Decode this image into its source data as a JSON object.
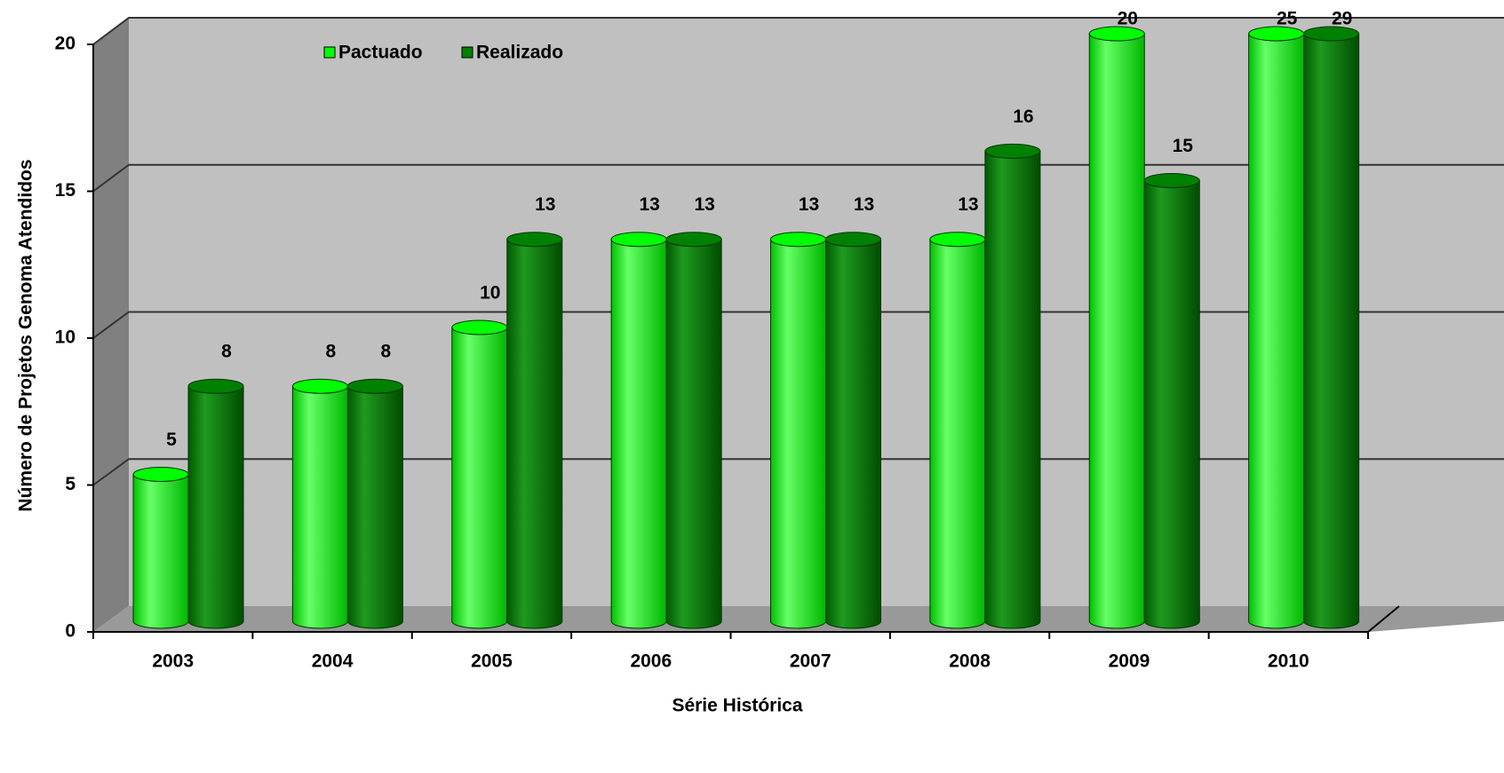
{
  "chart_data": {
    "type": "bar3d-cylinder",
    "x_label": "Série Histórica",
    "y_label": "Número de Projetos Genoma Atendidos",
    "categories": [
      "2003",
      "2004",
      "2005",
      "2006",
      "2007",
      "2008",
      "2009",
      "2010"
    ],
    "series": [
      {
        "name": "Pactuado",
        "color": "#00ff00",
        "values": [
          5,
          8,
          10,
          13,
          13,
          13,
          20,
          25
        ]
      },
      {
        "name": "Realizado",
        "color": "#008000",
        "values": [
          8,
          8,
          13,
          13,
          13,
          16,
          15,
          29
        ]
      }
    ],
    "ylim": [
      0,
      20
    ],
    "yticks": [
      0,
      5,
      10,
      15,
      20
    ],
    "grid": true,
    "legend": "top"
  }
}
